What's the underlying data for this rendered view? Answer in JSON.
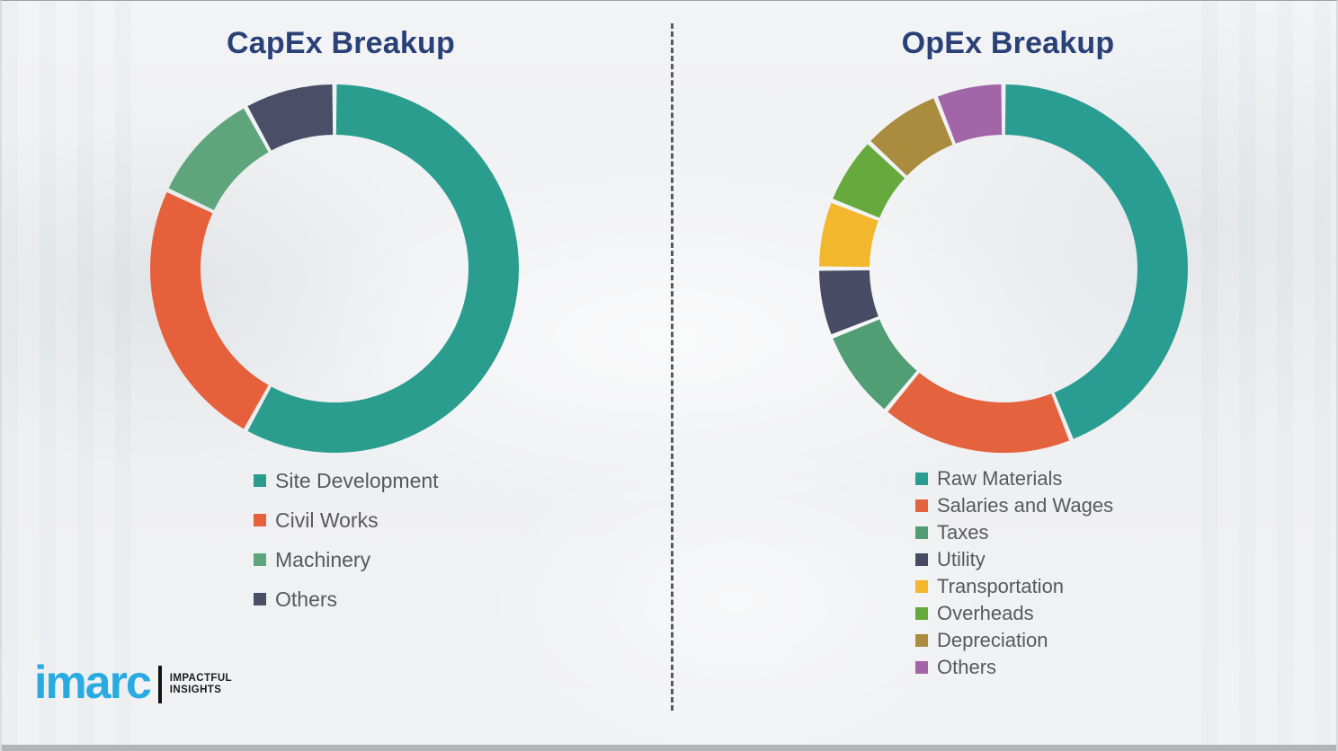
{
  "page": {
    "background_color": "#f0f1f3",
    "divider_style": "vertical-dashed",
    "divider_color": "#58595b"
  },
  "chart_data": [
    {
      "type": "pie",
      "subtype": "donut",
      "title": "CapEx Breakup",
      "title_color": "#2a4177",
      "start_angle_deg": 0,
      "direction": "clockwise",
      "legend_position": "below-left",
      "categories": [
        "Site Development",
        "Civil Works",
        "Machinery",
        "Others"
      ],
      "values": [
        58,
        24,
        10,
        8
      ],
      "values_unit": "percent (estimated from arc angles, no data labels shown)",
      "colors": [
        "#2a9d8f",
        "#e6613b",
        "#5ea57c",
        "#4a4e66"
      ]
    },
    {
      "type": "pie",
      "subtype": "donut",
      "title": "OpEx Breakup",
      "title_color": "#2a4177",
      "start_angle_deg": 0,
      "direction": "clockwise",
      "legend_position": "below-left",
      "categories": [
        "Raw Materials",
        "Salaries and Wages",
        "Taxes",
        "Utility",
        "Transportation",
        "Overheads",
        "Depreciation",
        "Others"
      ],
      "values": [
        44,
        17,
        8,
        6,
        6,
        6,
        7,
        6
      ],
      "values_unit": "percent (estimated from arc angles, no data labels shown)",
      "colors": [
        "#2a9d92",
        "#e2633e",
        "#529e74",
        "#474c64",
        "#f2b72d",
        "#66a93c",
        "#a98c3d",
        "#a266a8"
      ]
    }
  ],
  "logo": {
    "brand": "imarc",
    "brand_color": "#29abe2",
    "tagline_line1": "IMPACTFUL",
    "tagline_line2": "INSIGHTS"
  }
}
